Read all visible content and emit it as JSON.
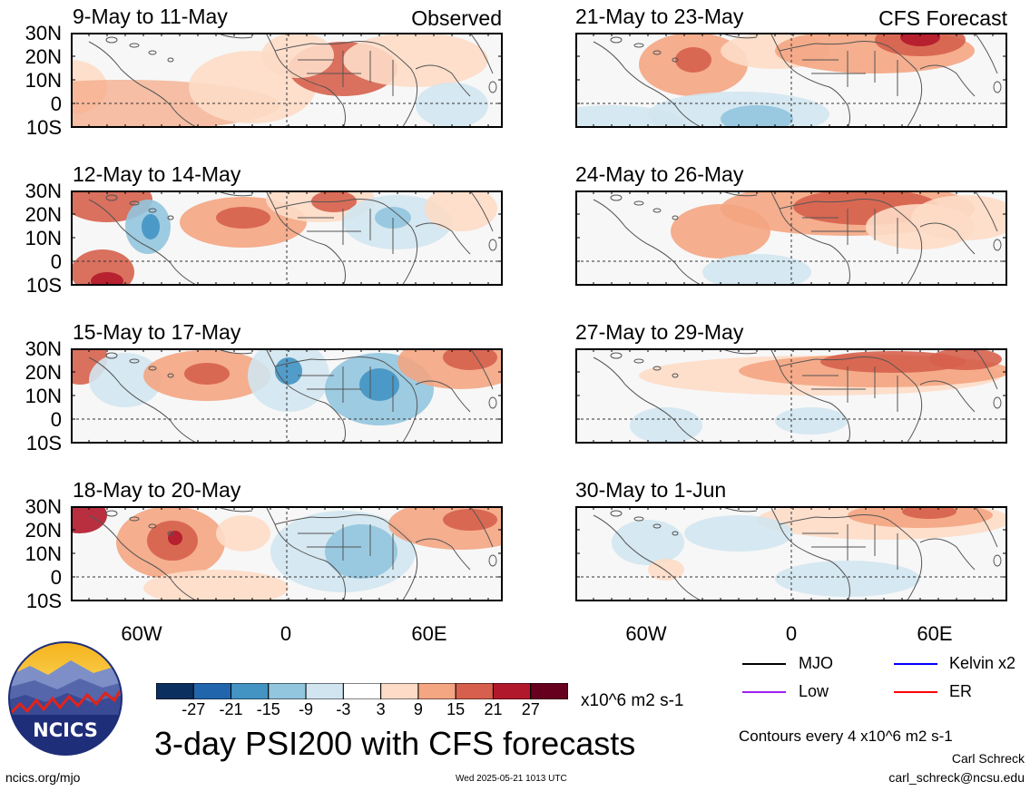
{
  "panels": {
    "left": [
      {
        "title": "9-May to 11-May",
        "tag": "Observed"
      },
      {
        "title": "12-May to 14-May",
        "tag": ""
      },
      {
        "title": "15-May to 17-May",
        "tag": ""
      },
      {
        "title": "18-May to 20-May",
        "tag": ""
      }
    ],
    "right": [
      {
        "title": "21-May to 23-May",
        "tag": "CFS Forecast"
      },
      {
        "title": "24-May to 26-May",
        "tag": ""
      },
      {
        "title": "27-May to 29-May",
        "tag": ""
      },
      {
        "title": "30-May to 1-Jun",
        "tag": ""
      }
    ]
  },
  "lat_labels": [
    "30N",
    "20N",
    "10N",
    "0",
    "10S"
  ],
  "lon_labels": [
    "60W",
    "0",
    "60E"
  ],
  "colorbar": {
    "colors": [
      "#0b2f5e",
      "#2166ac",
      "#4393c3",
      "#92c5de",
      "#d1e5f0",
      "#ffffff",
      "#fddbc7",
      "#f4a582",
      "#d6604d",
      "#b2182b",
      "#67001f"
    ],
    "labels": [
      "-27",
      "-21",
      "-15",
      "-9",
      "-3",
      "3",
      "9",
      "15",
      "21",
      "27"
    ],
    "units": "x10^6 m2 s-1"
  },
  "legend": [
    {
      "label": "MJO",
      "color": "#000000"
    },
    {
      "label": "Kelvin x2",
      "color": "#0000ff"
    },
    {
      "label": "Low",
      "color": "#a020f0"
    },
    {
      "label": "ER",
      "color": "#ff0000"
    }
  ],
  "footer": {
    "main_title": "3-day PSI200 with CFS forecasts",
    "contours": "Contours every 4 x10^6 m2 s-1",
    "author": "Carl Schreck",
    "email": "carl_schreck@ncsu.edu",
    "site": "ncics.org/mjo",
    "timestamp": "Wed 2025-05-21 1013 UTC",
    "logo_text": "NCICS"
  }
}
